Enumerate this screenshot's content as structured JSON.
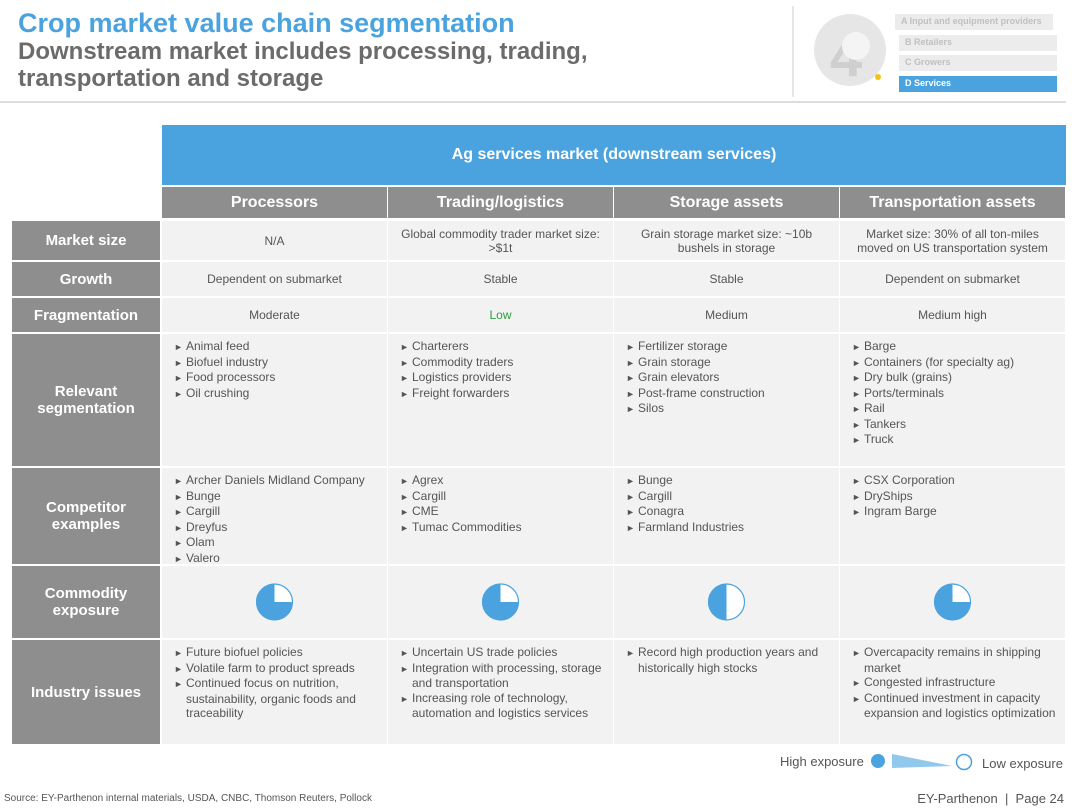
{
  "header": {
    "title": "Crop market value chain segmentation",
    "subtitle": "Downstream market includes processing, trading, transportation and storage"
  },
  "nav": {
    "items": [
      "A Input and equipment providers",
      "B Retailers",
      "C Growers",
      "D Services"
    ],
    "active": 3
  },
  "table": {
    "banner": "Ag services market (downstream services)",
    "columns": [
      "Processors",
      "Trading/logistics",
      "Storage assets",
      "Transportation assets"
    ],
    "rows": [
      {
        "label": "Market size",
        "cells": [
          "N/A",
          "Global commodity trader market size: >$1t",
          "Grain storage market size: ~10b bushels in storage",
          "Market size: 30% of all ton-miles moved on US transportation system"
        ]
      },
      {
        "label": "Growth",
        "cells": [
          "Dependent on submarket",
          "Stable",
          "Stable",
          "Dependent on submarket"
        ]
      },
      {
        "label": "Fragmentation",
        "cells": [
          "Moderate",
          "Low",
          "Medium",
          "Medium high"
        ]
      },
      {
        "label": "Relevant segmentation",
        "cells": [
          [
            "Animal feed",
            "Biofuel industry",
            "Food processors",
            "Oil crushing"
          ],
          [
            "Charterers",
            "Commodity traders",
            "Logistics providers",
            "Freight forwarders"
          ],
          [
            "Fertilizer storage",
            "Grain storage",
            "Grain elevators",
            "Post-frame construction",
            "Silos"
          ],
          [
            "Barge",
            "Containers (for specialty ag)",
            "Dry bulk (grains)",
            "Ports/terminals",
            "Rail",
            "Tankers",
            "Truck"
          ]
        ]
      },
      {
        "label": "Competitor examples",
        "cells": [
          [
            "Archer Daniels Midland Company",
            "Bunge",
            "Cargill",
            "Dreyfus",
            "Olam",
            "Valero"
          ],
          [
            "Agrex",
            "Cargill",
            "CME",
            "Tumac Commodities"
          ],
          [
            "Bunge",
            "Cargill",
            "Conagra",
            "Farmland Industries"
          ],
          [
            "CSX Corporation",
            "DryShips",
            "Ingram Barge"
          ]
        ]
      },
      {
        "label": "Commodity exposure",
        "cells": [
          75,
          75,
          50,
          75
        ]
      },
      {
        "label": "Industry issues",
        "cells": [
          [
            "Future biofuel policies",
            "Volatile farm to product spreads",
            "Continued focus on nutrition, sustainability, organic foods and traceability"
          ],
          [
            "Uncertain US trade policies",
            "Integration with processing, storage and transportation",
            "Increasing role of technology, automation and logistics services"
          ],
          [
            "Record high production years and historically high stocks"
          ],
          [
            "Overcapacity remains in shipping market",
            "Congested infrastructure",
            "Continued investment in capacity expansion and logistics optimization"
          ]
        ]
      }
    ]
  },
  "legend": {
    "high": "High exposure",
    "low": "Low exposure"
  },
  "footer": {
    "source": "Source: EY-Parthenon internal materials, USDA, CNBC, Thomson Reuters, Pollock",
    "page": "EY-Parthenon  |  Page 24"
  }
}
